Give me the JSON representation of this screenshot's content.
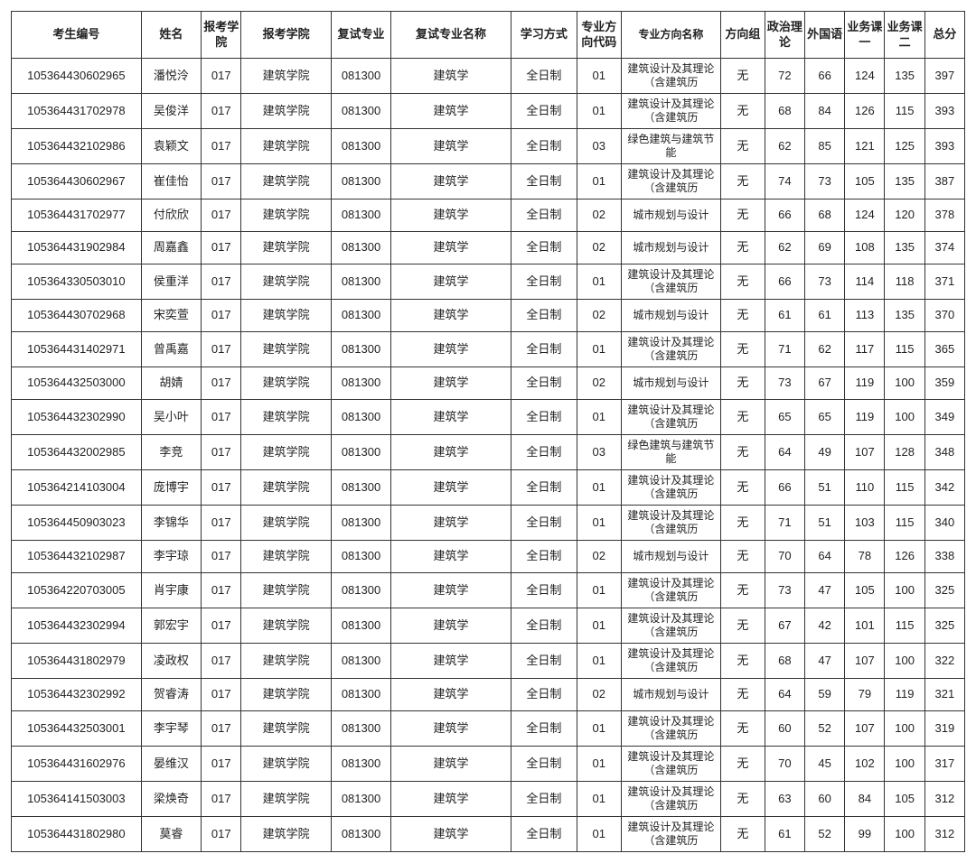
{
  "table": {
    "columns": [
      "考生编号",
      "姓名",
      "报考学院",
      "报考学院",
      "复试专业",
      "复试专业名称",
      "学习方式",
      "专业方向代码",
      "专业方向名称",
      "方向组",
      "政治理论",
      "外国语",
      "业务课一",
      "业务课二",
      "总分"
    ],
    "col_classes": [
      "c-id",
      "c-name",
      "c-code1",
      "c-col4",
      "c-code2",
      "c-col6",
      "c-col7",
      "c-code3",
      "c-col9",
      "c-col10",
      "c-sc",
      "c-sc",
      "c-sc",
      "c-sc",
      "c-sc"
    ],
    "rows": [
      [
        "105364430602965",
        "潘悦泠",
        "017",
        "建筑学院",
        "081300",
        "建筑学",
        "全日制",
        "01",
        "建筑设计及其理论（含建筑历",
        "无",
        "72",
        "66",
        "124",
        "135",
        "397"
      ],
      [
        "105364431702978",
        "吴俊洋",
        "017",
        "建筑学院",
        "081300",
        "建筑学",
        "全日制",
        "01",
        "建筑设计及其理论（含建筑历",
        "无",
        "68",
        "84",
        "126",
        "115",
        "393"
      ],
      [
        "105364432102986",
        "袁颖文",
        "017",
        "建筑学院",
        "081300",
        "建筑学",
        "全日制",
        "03",
        "绿色建筑与建筑节能",
        "无",
        "62",
        "85",
        "121",
        "125",
        "393"
      ],
      [
        "105364430602967",
        "崔佳怡",
        "017",
        "建筑学院",
        "081300",
        "建筑学",
        "全日制",
        "01",
        "建筑设计及其理论（含建筑历",
        "无",
        "74",
        "73",
        "105",
        "135",
        "387"
      ],
      [
        "105364431702977",
        "付欣欣",
        "017",
        "建筑学院",
        "081300",
        "建筑学",
        "全日制",
        "02",
        "城市规划与设计",
        "无",
        "66",
        "68",
        "124",
        "120",
        "378"
      ],
      [
        "105364431902984",
        "周嘉鑫",
        "017",
        "建筑学院",
        "081300",
        "建筑学",
        "全日制",
        "02",
        "城市规划与设计",
        "无",
        "62",
        "69",
        "108",
        "135",
        "374"
      ],
      [
        "105364330503010",
        "侯重洋",
        "017",
        "建筑学院",
        "081300",
        "建筑学",
        "全日制",
        "01",
        "建筑设计及其理论（含建筑历",
        "无",
        "66",
        "73",
        "114",
        "118",
        "371"
      ],
      [
        "105364430702968",
        "宋奕萱",
        "017",
        "建筑学院",
        "081300",
        "建筑学",
        "全日制",
        "02",
        "城市规划与设计",
        "无",
        "61",
        "61",
        "113",
        "135",
        "370"
      ],
      [
        "105364431402971",
        "曾禹嘉",
        "017",
        "建筑学院",
        "081300",
        "建筑学",
        "全日制",
        "01",
        "建筑设计及其理论（含建筑历",
        "无",
        "71",
        "62",
        "117",
        "115",
        "365"
      ],
      [
        "105364432503000",
        "胡婧",
        "017",
        "建筑学院",
        "081300",
        "建筑学",
        "全日制",
        "02",
        "城市规划与设计",
        "无",
        "73",
        "67",
        "119",
        "100",
        "359"
      ],
      [
        "105364432302990",
        "吴小叶",
        "017",
        "建筑学院",
        "081300",
        "建筑学",
        "全日制",
        "01",
        "建筑设计及其理论（含建筑历",
        "无",
        "65",
        "65",
        "119",
        "100",
        "349"
      ],
      [
        "105364432002985",
        "李竞",
        "017",
        "建筑学院",
        "081300",
        "建筑学",
        "全日制",
        "03",
        "绿色建筑与建筑节能",
        "无",
        "64",
        "49",
        "107",
        "128",
        "348"
      ],
      [
        "105364214103004",
        "庞博宇",
        "017",
        "建筑学院",
        "081300",
        "建筑学",
        "全日制",
        "01",
        "建筑设计及其理论（含建筑历",
        "无",
        "66",
        "51",
        "110",
        "115",
        "342"
      ],
      [
        "105364450903023",
        "李锦华",
        "017",
        "建筑学院",
        "081300",
        "建筑学",
        "全日制",
        "01",
        "建筑设计及其理论（含建筑历",
        "无",
        "71",
        "51",
        "103",
        "115",
        "340"
      ],
      [
        "105364432102987",
        "李宇琼",
        "017",
        "建筑学院",
        "081300",
        "建筑学",
        "全日制",
        "02",
        "城市规划与设计",
        "无",
        "70",
        "64",
        "78",
        "126",
        "338"
      ],
      [
        "105364220703005",
        "肖宇康",
        "017",
        "建筑学院",
        "081300",
        "建筑学",
        "全日制",
        "01",
        "建筑设计及其理论（含建筑历",
        "无",
        "73",
        "47",
        "105",
        "100",
        "325"
      ],
      [
        "105364432302994",
        "郭宏宇",
        "017",
        "建筑学院",
        "081300",
        "建筑学",
        "全日制",
        "01",
        "建筑设计及其理论（含建筑历",
        "无",
        "67",
        "42",
        "101",
        "115",
        "325"
      ],
      [
        "105364431802979",
        "凌政权",
        "017",
        "建筑学院",
        "081300",
        "建筑学",
        "全日制",
        "01",
        "建筑设计及其理论（含建筑历",
        "无",
        "68",
        "47",
        "107",
        "100",
        "322"
      ],
      [
        "105364432302992",
        "贺睿涛",
        "017",
        "建筑学院",
        "081300",
        "建筑学",
        "全日制",
        "02",
        "城市规划与设计",
        "无",
        "64",
        "59",
        "79",
        "119",
        "321"
      ],
      [
        "105364432503001",
        "李宇琴",
        "017",
        "建筑学院",
        "081300",
        "建筑学",
        "全日制",
        "01",
        "建筑设计及其理论（含建筑历",
        "无",
        "60",
        "52",
        "107",
        "100",
        "319"
      ],
      [
        "105364431602976",
        "晏维汉",
        "017",
        "建筑学院",
        "081300",
        "建筑学",
        "全日制",
        "01",
        "建筑设计及其理论（含建筑历",
        "无",
        "70",
        "45",
        "102",
        "100",
        "317"
      ],
      [
        "105364141503003",
        "梁焕奇",
        "017",
        "建筑学院",
        "081300",
        "建筑学",
        "全日制",
        "01",
        "建筑设计及其理论（含建筑历",
        "无",
        "63",
        "60",
        "84",
        "105",
        "312"
      ],
      [
        "105364431802980",
        "莫睿",
        "017",
        "建筑学院",
        "081300",
        "建筑学",
        "全日制",
        "01",
        "建筑设计及其理论（含建筑历",
        "无",
        "61",
        "52",
        "99",
        "100",
        "312"
      ]
    ]
  }
}
